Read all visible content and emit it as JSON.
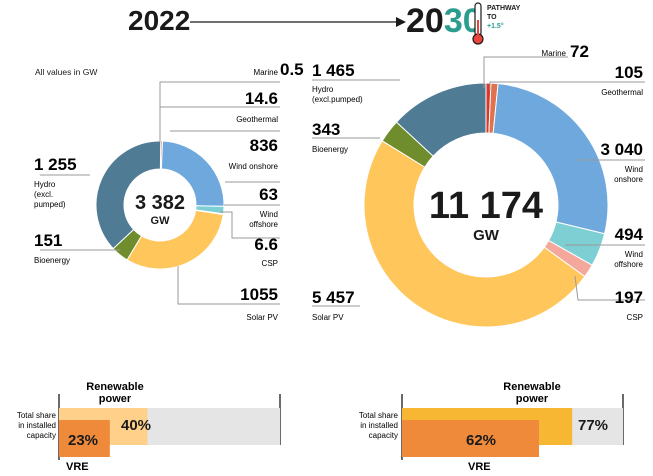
{
  "header": {
    "year_start": "2022",
    "year_end_prefix": "20",
    "year_end_suffix": "30",
    "pathway_line1": "PATHWAY",
    "pathway_line2": "TO",
    "pathway_line3": "+1.5°"
  },
  "units_note": "All values in GW",
  "colors": {
    "marine": "#d9372b",
    "geothermal": "#e0734e",
    "wind_onshore": "#6fa8dc",
    "wind_offshore": "#7ecfd4",
    "csp": "#f4a79b",
    "solar_pv": "#ffc65c",
    "bioenergy": "#6f8d2c",
    "hydro": "#4f7b95",
    "vre_bar": "#ee8a3a",
    "renewable_bar_2022": "#ffd08a",
    "renewable_bar_2030": "#f7b733",
    "track": "#e5e5e5",
    "accent_teal": "#2a9d8f"
  },
  "chart_data": [
    {
      "type": "pie",
      "title": "2022",
      "center_value": "3 382",
      "center_unit": "GW",
      "slices": [
        {
          "name": "Marine",
          "value": 0.5,
          "label": "0.5"
        },
        {
          "name": "Geothermal",
          "value": 14.6,
          "label": "14.6"
        },
        {
          "name": "Wind onshore",
          "value": 836,
          "label": "836"
        },
        {
          "name": "Wind offshore",
          "value": 63,
          "label": "63"
        },
        {
          "name": "CSP",
          "value": 6.6,
          "label": "6.6"
        },
        {
          "name": "Solar PV",
          "value": 1055,
          "label": "1055"
        },
        {
          "name": "Bioenergy",
          "value": 151,
          "label": "151"
        },
        {
          "name": "Hydro (excl. pumped)",
          "value": 1255,
          "label": "1 255"
        }
      ]
    },
    {
      "type": "pie",
      "title": "2030",
      "center_value": "11 174",
      "center_unit": "GW",
      "slices": [
        {
          "name": "Marine",
          "value": 72,
          "label": "72"
        },
        {
          "name": "Geothermal",
          "value": 105,
          "label": "105"
        },
        {
          "name": "Wind onshore",
          "value": 3040,
          "label": "3 040"
        },
        {
          "name": "Wind offshore",
          "value": 494,
          "label": "494"
        },
        {
          "name": "CSP",
          "value": 197,
          "label": "197"
        },
        {
          "name": "Solar PV",
          "value": 5457,
          "label": "5 457"
        },
        {
          "name": "Bioenergy",
          "value": 343,
          "label": "343"
        },
        {
          "name": "Hydro (excl.pumped)",
          "value": 1465,
          "label": "1 465"
        }
      ]
    },
    {
      "type": "bar",
      "title": "Total share in installed capacity 2022",
      "series": [
        {
          "name": "VRE",
          "value": 23,
          "label": "23%"
        },
        {
          "name": "Renewable power",
          "value": 40,
          "label": "40%"
        }
      ],
      "ylim": [
        0,
        100
      ]
    },
    {
      "type": "bar",
      "title": "Total share in installed capacity 2030",
      "series": [
        {
          "name": "VRE",
          "value": 62,
          "label": "62%"
        },
        {
          "name": "Renewable power",
          "value": 77,
          "label": "77%"
        }
      ],
      "ylim": [
        0,
        100
      ]
    }
  ],
  "labels_2022": {
    "marine": "Marine",
    "geothermal": "Geothermal",
    "wind_onshore": "Wind onshore",
    "wind_offshore_1": "Wind",
    "wind_offshore_2": "offshore",
    "csp": "CSP",
    "solar_pv": "Solar PV",
    "bioenergy": "Bioenergy",
    "hydro_1": "Hydro",
    "hydro_2": "(excl.",
    "hydro_3": "pumped)"
  },
  "labels_2030": {
    "marine": "Marine",
    "geothermal": "Geothermal",
    "wind_onshore_1": "Wind",
    "wind_onshore_2": "onshore",
    "wind_offshore_1": "Wind",
    "wind_offshore_2": "offshore",
    "csp": "CSP",
    "solar_pv": "Solar PV",
    "bioenergy": "Bioenergy",
    "hydro_1": "Hydro",
    "hydro_2": "(excl.pumped)"
  },
  "share": {
    "label_line1": "Total share",
    "label_line2": "in installed",
    "label_line3": "capacity",
    "renewable_line1": "Renewable",
    "renewable_line2": "power",
    "vre": "VRE"
  }
}
